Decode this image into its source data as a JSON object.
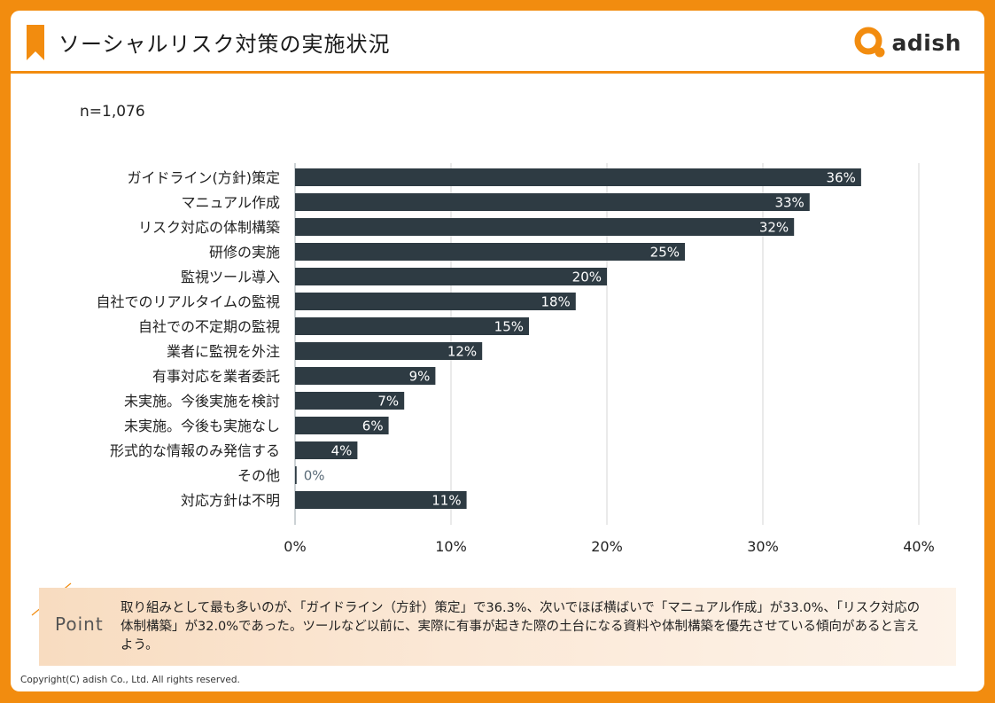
{
  "header": {
    "title": "ソーシャルリスク対策の実施状況",
    "logo_text": "adish",
    "accent_color": "#f28c0f"
  },
  "sample_size": "n=1,076",
  "chart_data": {
    "type": "bar",
    "orientation": "horizontal",
    "title": "ソーシャルリスク対策の実施状況",
    "categories": [
      "ガイドライン(方針)策定",
      "マニュアル作成",
      "リスク対応の体制構築",
      "研修の実施",
      "監視ツール導入",
      "自社でのリアルタイムの監視",
      "自社での不定期の監視",
      "業者に監視を外注",
      "有事対応を業者委託",
      "未実施。今後実施を検討",
      "未実施。今後も実施なし",
      "形式的な情報のみ発信する",
      "その他",
      "対応方針は不明"
    ],
    "values": [
      36.3,
      33.0,
      32.0,
      25,
      20,
      18,
      15,
      12,
      9,
      7,
      6,
      4,
      0.1,
      11
    ],
    "value_labels": [
      "36%",
      "33%",
      "32%",
      "25%",
      "20%",
      "18%",
      "15%",
      "12%",
      "9%",
      "7%",
      "6%",
      "4%",
      "0%",
      "11%"
    ],
    "xlim": [
      0,
      40
    ],
    "ticks": [
      0,
      10,
      20,
      30,
      40
    ],
    "tick_labels": [
      "0%",
      "10%",
      "20%",
      "30%",
      "40%"
    ],
    "grid": true,
    "bar_color": "#2e3b43",
    "label_color": "#ffffff",
    "outside_label_color": "#5a6b78"
  },
  "point": {
    "label": "Point",
    "text": "取り組みとして最も多いのが、「ガイドライン（方針）策定」で36.3%、次いでほぼ横ばいで「マニュアル作成」が33.0%、「リスク対応の体制構築」が32.0%であった。ツールなど以前に、実際に有事が起きた際の土台になる資料や体制構築を優先させている傾向があると言えよう。"
  },
  "copyright": "Copyright(C) adish Co., Ltd.  All rights reserved."
}
